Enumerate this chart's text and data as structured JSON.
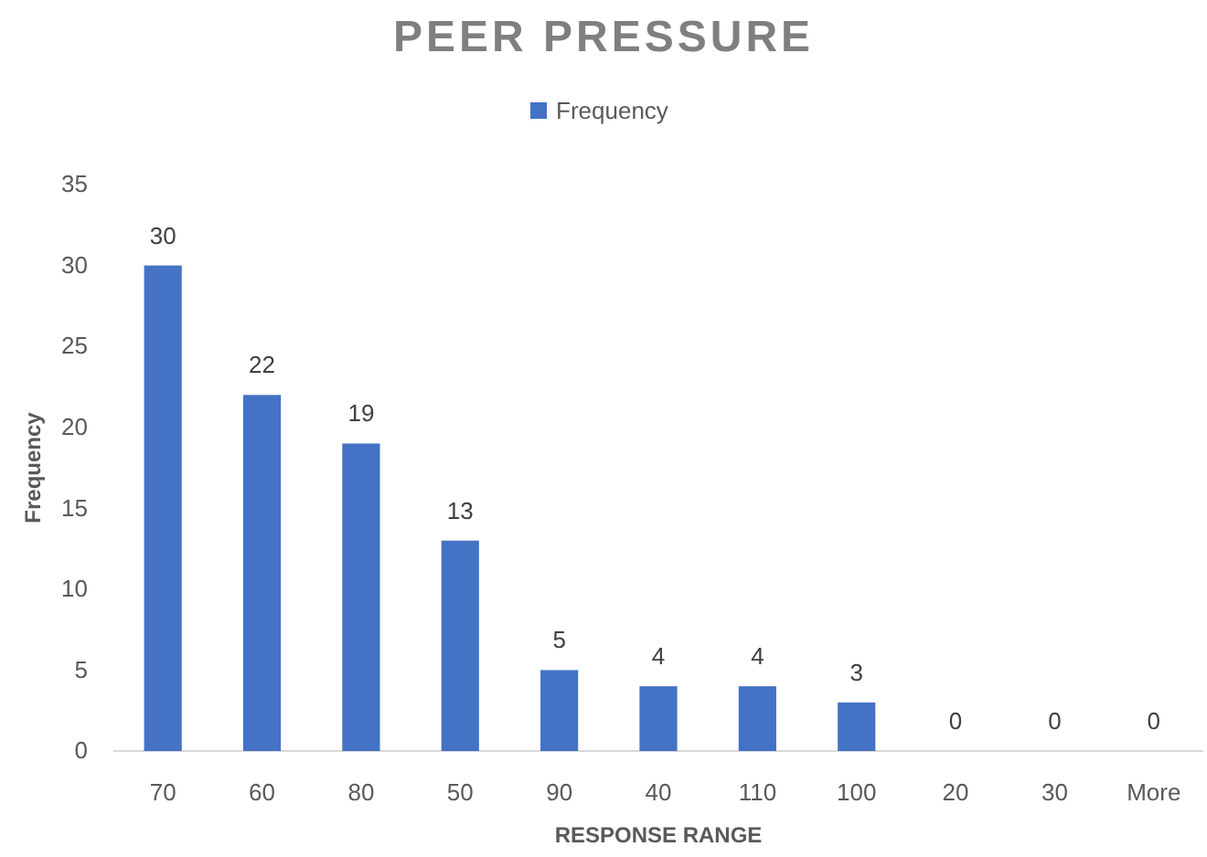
{
  "chart_data": {
    "type": "bar",
    "title": "PEER PRESSURE",
    "xlabel": "RESPONSE RANGE",
    "ylabel": "Frequency",
    "categories": [
      "70",
      "60",
      "80",
      "50",
      "90",
      "40",
      "110",
      "100",
      "20",
      "30",
      "More"
    ],
    "series": [
      {
        "name": "Frequency",
        "color": "#4472c4",
        "values": [
          30,
          22,
          19,
          13,
          5,
          4,
          4,
          3,
          0,
          0,
          0
        ]
      }
    ],
    "ylim": [
      0,
      35
    ],
    "yticks": [
      0,
      5,
      10,
      15,
      20,
      25,
      30,
      35
    ],
    "grid": false,
    "legend": "top",
    "data_labels": true
  }
}
